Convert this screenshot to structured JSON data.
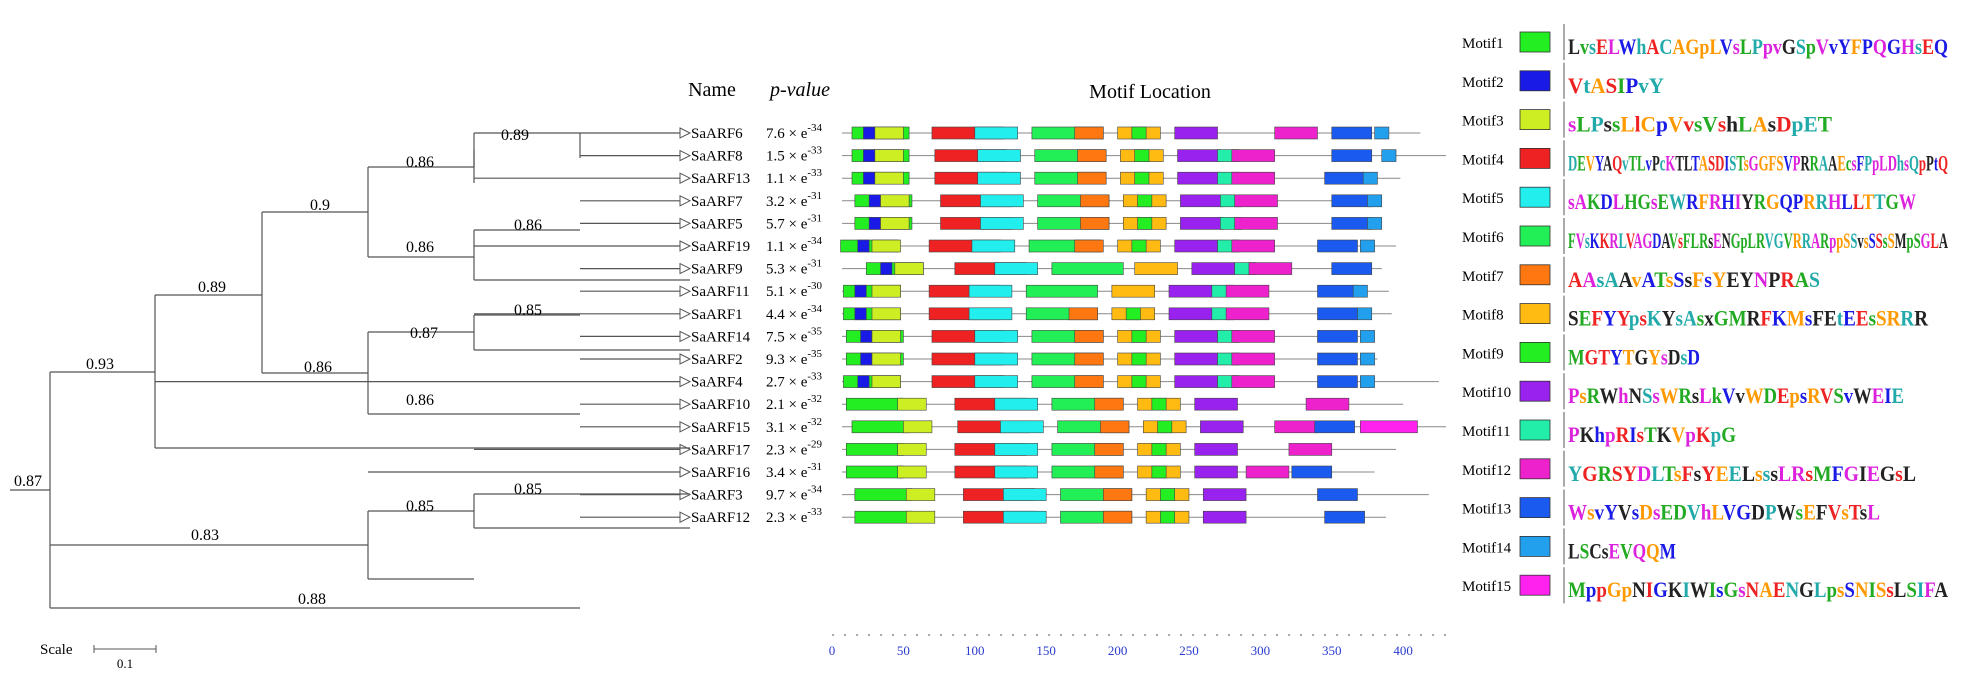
{
  "headers": {
    "name": "Name",
    "pvalue": "p-value",
    "motif_location": "Motif Location"
  },
  "scale": {
    "label": "Scale",
    "value": "0.1"
  },
  "tree": {
    "bootstrap_values": [
      "0.89",
      "0.86",
      "0.9",
      "0.86",
      "0.86",
      "0.89",
      "0.85",
      "0.87",
      "0.86",
      "0.86",
      "0.93",
      "0.85",
      "0.85",
      "0.83",
      "0.88",
      "0.87"
    ]
  },
  "genes": [
    {
      "name": "SaARF6",
      "pvalue_mant": "7.6",
      "pvalue_exp": "-34",
      "length": 412
    },
    {
      "name": "SaARF8",
      "pvalue_mant": "1.5",
      "pvalue_exp": "-33",
      "length": 430
    },
    {
      "name": "SaARF13",
      "pvalue_mant": "1.1",
      "pvalue_exp": "-33",
      "length": 398
    },
    {
      "name": "SaARF7",
      "pvalue_mant": "3.2",
      "pvalue_exp": "-31",
      "length": 383
    },
    {
      "name": "SaARF5",
      "pvalue_mant": "5.7",
      "pvalue_exp": "-31",
      "length": 384
    },
    {
      "name": "SaARF19",
      "pvalue_mant": "1.1",
      "pvalue_exp": "-34",
      "length": 395
    },
    {
      "name": "SaARF9",
      "pvalue_mant": "5.3",
      "pvalue_exp": "-31",
      "length": 385
    },
    {
      "name": "SaARF11",
      "pvalue_mant": "5.1",
      "pvalue_exp": "-30",
      "length": 390
    },
    {
      "name": "SaARF1",
      "pvalue_mant": "4.4",
      "pvalue_exp": "-34",
      "length": 392
    },
    {
      "name": "SaARF14",
      "pvalue_mant": "7.5",
      "pvalue_exp": "-35",
      "length": 380
    },
    {
      "name": "SaARF2",
      "pvalue_mant": "9.3",
      "pvalue_exp": "-35",
      "length": 382
    },
    {
      "name": "SaARF4",
      "pvalue_mant": "2.7",
      "pvalue_exp": "-33",
      "length": 425
    },
    {
      "name": "SaARF10",
      "pvalue_mant": "2.1",
      "pvalue_exp": "-32",
      "length": 400
    },
    {
      "name": "SaARF15",
      "pvalue_mant": "3.1",
      "pvalue_exp": "-32",
      "length": 430
    },
    {
      "name": "SaARF17",
      "pvalue_mant": "2.3",
      "pvalue_exp": "-29",
      "length": 395
    },
    {
      "name": "SaARF16",
      "pvalue_mant": "3.4",
      "pvalue_exp": "-31",
      "length": 380
    },
    {
      "name": "SaARF3",
      "pvalue_mant": "9.7",
      "pvalue_exp": "-34",
      "length": 418
    },
    {
      "name": "SaARF12",
      "pvalue_mant": "2.3",
      "pvalue_exp": "-33",
      "length": 388
    }
  ],
  "motifs": [
    {
      "id": 1,
      "label": "Motif1",
      "color": "#22ee22",
      "logo": "LvsELWhACAGpLVsLPpvGSpVvYFPQGHsEQ"
    },
    {
      "id": 2,
      "label": "Motif2",
      "color": "#1a1ae6",
      "logo": "VtASIPvY"
    },
    {
      "id": 3,
      "label": "Motif3",
      "color": "#ccee22",
      "logo": "sLPssLlCpVvsVshLAsDpET"
    },
    {
      "id": 4,
      "label": "Motif4",
      "color": "#ee2222",
      "logo": "DEVYAQvTLvPcKTLTASDISTsGGFSVPRRAAEcsFPpLDhsQpPtQ"
    },
    {
      "id": 5,
      "label": "Motif5",
      "color": "#22eeee",
      "logo": "sAKDLHGsEWRFRHIYRGQPRRHLLTTGW"
    },
    {
      "id": 6,
      "label": "Motif6",
      "color": "#22ee55",
      "logo": "FVsKKRLVAGDAVsFLRsENGpLRVGVRRARppSSvsSSsSMpSGLA"
    },
    {
      "id": 7,
      "label": "Motif7",
      "color": "#ff7711",
      "logo": "AAsAAvATsSsFsYEYNPRAS"
    },
    {
      "id": 8,
      "label": "Motif8",
      "color": "#ffbb11",
      "logo": "SEFYYpsKYsAsxGMRFKMsFEtEEsSRRR"
    },
    {
      "id": 9,
      "label": "Motif9",
      "color": "#22ee22",
      "logo": "MGTYTGYsDsD"
    },
    {
      "id": 10,
      "label": "Motif10",
      "color": "#9922ee",
      "logo": "PsRWhNSsWRsLkVvWDEpsRVSvWEIE"
    },
    {
      "id": 11,
      "label": "Motif11",
      "color": "#22eeaa",
      "logo": "PKhpRIsTKVpKpG"
    },
    {
      "id": 12,
      "label": "Motif12",
      "color": "#ee22cc",
      "logo": "YGRSYDLTsFsYEELsssLRsMFGIEGsL"
    },
    {
      "id": 13,
      "label": "Motif13",
      "color": "#1a5aee",
      "logo": "WsvYVsDsEDVhLVGDPWsEFVsTsL"
    },
    {
      "id": 14,
      "label": "Motif14",
      "color": "#22a0ee",
      "logo": "LSCsEVQQM"
    },
    {
      "id": 15,
      "label": "Motif15",
      "color": "#ff22ee",
      "logo": "MppGpNIGKIWIsGsNAENGLpsSNISsLSIFA"
    }
  ],
  "axis": {
    "ticks": [
      "0",
      "50",
      "100",
      "150",
      "200",
      "250",
      "300",
      "350",
      "400"
    ],
    "min": 0,
    "max": 430
  },
  "gene_motifs": [
    [
      [
        6,
        1,
        14
      ],
      [
        6,
        2,
        22
      ],
      [
        8,
        3,
        30
      ],
      [
        4,
        4,
        70
      ],
      [
        5,
        5,
        100
      ],
      [
        6,
        6,
        140
      ],
      [
        7,
        7,
        170
      ],
      [
        8,
        8,
        200
      ],
      [
        9,
        9,
        210
      ],
      [
        10,
        10,
        240
      ],
      [
        12,
        12,
        310
      ],
      [
        13,
        13,
        350
      ],
      [
        14,
        14,
        380
      ]
    ],
    [
      [
        6,
        1,
        14
      ],
      [
        6,
        2,
        22
      ],
      [
        8,
        3,
        30
      ],
      [
        4,
        4,
        72
      ],
      [
        5,
        5,
        102
      ],
      [
        6,
        6,
        142
      ],
      [
        7,
        7,
        172
      ],
      [
        8,
        8,
        202
      ],
      [
        9,
        9,
        212
      ],
      [
        10,
        10,
        242
      ],
      [
        11,
        11,
        270
      ],
      [
        12,
        12,
        280
      ],
      [
        13,
        13,
        350
      ],
      [
        14,
        14,
        385
      ]
    ],
    [
      [
        6,
        1,
        14
      ],
      [
        6,
        2,
        22
      ],
      [
        8,
        3,
        30
      ],
      [
        4,
        4,
        72
      ],
      [
        5,
        5,
        102
      ],
      [
        6,
        6,
        142
      ],
      [
        7,
        7,
        172
      ],
      [
        8,
        8,
        202
      ],
      [
        9,
        9,
        212
      ],
      [
        10,
        10,
        242
      ],
      [
        11,
        11,
        270
      ],
      [
        12,
        12,
        280
      ],
      [
        13,
        13,
        345
      ],
      [
        14,
        14,
        372
      ]
    ],
    [
      [
        6,
        1,
        16
      ],
      [
        6,
        2,
        26
      ],
      [
        8,
        3,
        34
      ],
      [
        4,
        4,
        76
      ],
      [
        5,
        5,
        104
      ],
      [
        6,
        6,
        144
      ],
      [
        7,
        7,
        174
      ],
      [
        8,
        8,
        204
      ],
      [
        9,
        9,
        214
      ],
      [
        10,
        10,
        244
      ],
      [
        11,
        11,
        272
      ],
      [
        12,
        12,
        282
      ],
      [
        13,
        13,
        350
      ],
      [
        14,
        14,
        375
      ]
    ],
    [
      [
        6,
        1,
        16
      ],
      [
        6,
        2,
        26
      ],
      [
        8,
        3,
        34
      ],
      [
        4,
        4,
        76
      ],
      [
        5,
        5,
        104
      ],
      [
        6,
        6,
        144
      ],
      [
        7,
        7,
        174
      ],
      [
        8,
        8,
        204
      ],
      [
        9,
        9,
        214
      ],
      [
        10,
        10,
        244
      ],
      [
        11,
        11,
        272
      ],
      [
        12,
        12,
        282
      ],
      [
        13,
        13,
        350
      ],
      [
        14,
        14,
        375
      ]
    ],
    [
      [
        6,
        1,
        6
      ],
      [
        6,
        2,
        18
      ],
      [
        8,
        3,
        28
      ],
      [
        4,
        4,
        68
      ],
      [
        5,
        5,
        98
      ],
      [
        6,
        6,
        138
      ],
      [
        7,
        7,
        170
      ],
      [
        8,
        8,
        200
      ],
      [
        9,
        9,
        210
      ],
      [
        10,
        10,
        240
      ],
      [
        11,
        11,
        270
      ],
      [
        12,
        12,
        280
      ],
      [
        13,
        13,
        340
      ],
      [
        14,
        14,
        370
      ]
    ],
    [
      [
        6,
        1,
        24
      ],
      [
        6,
        2,
        34
      ],
      [
        8,
        3,
        44
      ],
      [
        4,
        4,
        86
      ],
      [
        5,
        5,
        114
      ],
      [
        6,
        6,
        154
      ],
      [
        8,
        8,
        212
      ],
      [
        10,
        10,
        252
      ],
      [
        11,
        11,
        282
      ],
      [
        12,
        12,
        292
      ],
      [
        13,
        13,
        350
      ]
    ],
    [
      [
        6,
        1,
        8
      ],
      [
        6,
        2,
        16
      ],
      [
        8,
        3,
        28
      ],
      [
        4,
        4,
        68
      ],
      [
        5,
        5,
        96
      ],
      [
        6,
        6,
        136
      ],
      [
        8,
        8,
        196
      ],
      [
        10,
        10,
        236
      ],
      [
        11,
        11,
        266
      ],
      [
        12,
        12,
        276
      ],
      [
        13,
        13,
        340
      ],
      [
        14,
        14,
        365
      ]
    ],
    [
      [
        6,
        1,
        8
      ],
      [
        6,
        2,
        16
      ],
      [
        8,
        3,
        28
      ],
      [
        4,
        4,
        68
      ],
      [
        5,
        5,
        96
      ],
      [
        6,
        6,
        136
      ],
      [
        7,
        7,
        166
      ],
      [
        8,
        8,
        196
      ],
      [
        9,
        9,
        206
      ],
      [
        10,
        10,
        236
      ],
      [
        11,
        11,
        266
      ],
      [
        12,
        12,
        276
      ],
      [
        13,
        13,
        340
      ],
      [
        14,
        14,
        368
      ]
    ],
    [
      [
        6,
        1,
        10
      ],
      [
        6,
        2,
        20
      ],
      [
        8,
        3,
        28
      ],
      [
        4,
        4,
        70
      ],
      [
        5,
        5,
        100
      ],
      [
        6,
        6,
        140
      ],
      [
        7,
        7,
        170
      ],
      [
        8,
        8,
        200
      ],
      [
        9,
        9,
        210
      ],
      [
        10,
        10,
        240
      ],
      [
        11,
        11,
        270
      ],
      [
        12,
        12,
        280
      ],
      [
        13,
        13,
        340
      ],
      [
        14,
        14,
        370
      ]
    ],
    [
      [
        6,
        1,
        10
      ],
      [
        6,
        2,
        20
      ],
      [
        8,
        3,
        28
      ],
      [
        4,
        4,
        70
      ],
      [
        5,
        5,
        100
      ],
      [
        6,
        6,
        140
      ],
      [
        7,
        7,
        170
      ],
      [
        8,
        8,
        200
      ],
      [
        9,
        9,
        210
      ],
      [
        10,
        10,
        240
      ],
      [
        11,
        11,
        270
      ],
      [
        12,
        12,
        280
      ],
      [
        13,
        13,
        340
      ],
      [
        14,
        14,
        370
      ]
    ],
    [
      [
        6,
        1,
        8
      ],
      [
        6,
        2,
        18
      ],
      [
        8,
        3,
        28
      ],
      [
        4,
        4,
        70
      ],
      [
        5,
        5,
        100
      ],
      [
        6,
        6,
        140
      ],
      [
        7,
        7,
        170
      ],
      [
        8,
        8,
        200
      ],
      [
        9,
        9,
        210
      ],
      [
        10,
        10,
        240
      ],
      [
        11,
        11,
        270
      ],
      [
        12,
        12,
        280
      ],
      [
        13,
        13,
        340
      ],
      [
        14,
        14,
        370
      ]
    ],
    [
      [
        6,
        1,
        10
      ],
      [
        8,
        3,
        46
      ],
      [
        4,
        4,
        86
      ],
      [
        5,
        5,
        114
      ],
      [
        6,
        6,
        154
      ],
      [
        7,
        7,
        184
      ],
      [
        8,
        8,
        214
      ],
      [
        9,
        9,
        224
      ],
      [
        10,
        10,
        254
      ],
      [
        12,
        12,
        332
      ]
    ],
    [
      [
        6,
        1,
        14
      ],
      [
        8,
        3,
        50
      ],
      [
        4,
        4,
        88
      ],
      [
        5,
        5,
        118
      ],
      [
        6,
        6,
        158
      ],
      [
        7,
        7,
        188
      ],
      [
        8,
        8,
        218
      ],
      [
        9,
        9,
        228
      ],
      [
        10,
        10,
        258
      ],
      [
        12,
        12,
        310
      ],
      [
        13,
        13,
        338
      ],
      [
        15,
        15,
        370
      ]
    ],
    [
      [
        6,
        1,
        10
      ],
      [
        8,
        3,
        46
      ],
      [
        4,
        4,
        86
      ],
      [
        5,
        5,
        114
      ],
      [
        6,
        6,
        154
      ],
      [
        7,
        7,
        184
      ],
      [
        8,
        8,
        214
      ],
      [
        9,
        9,
        224
      ],
      [
        10,
        10,
        254
      ],
      [
        12,
        12,
        320
      ]
    ],
    [
      [
        6,
        1,
        10
      ],
      [
        8,
        3,
        46
      ],
      [
        4,
        4,
        86
      ],
      [
        5,
        5,
        114
      ],
      [
        6,
        6,
        154
      ],
      [
        7,
        7,
        184
      ],
      [
        8,
        8,
        214
      ],
      [
        9,
        9,
        224
      ],
      [
        10,
        10,
        254
      ],
      [
        12,
        12,
        290
      ],
      [
        13,
        13,
        322
      ]
    ],
    [
      [
        6,
        1,
        16
      ],
      [
        8,
        3,
        52
      ],
      [
        4,
        4,
        92
      ],
      [
        5,
        5,
        120
      ],
      [
        6,
        6,
        160
      ],
      [
        7,
        7,
        190
      ],
      [
        8,
        8,
        220
      ],
      [
        9,
        9,
        230
      ],
      [
        10,
        10,
        260
      ],
      [
        13,
        13,
        340
      ]
    ],
    [
      [
        6,
        1,
        16
      ],
      [
        8,
        3,
        52
      ],
      [
        4,
        4,
        92
      ],
      [
        5,
        5,
        120
      ],
      [
        6,
        6,
        160
      ],
      [
        7,
        7,
        190
      ],
      [
        8,
        8,
        220
      ],
      [
        9,
        9,
        230
      ],
      [
        10,
        10,
        260
      ],
      [
        13,
        13,
        345
      ]
    ]
  ]
}
